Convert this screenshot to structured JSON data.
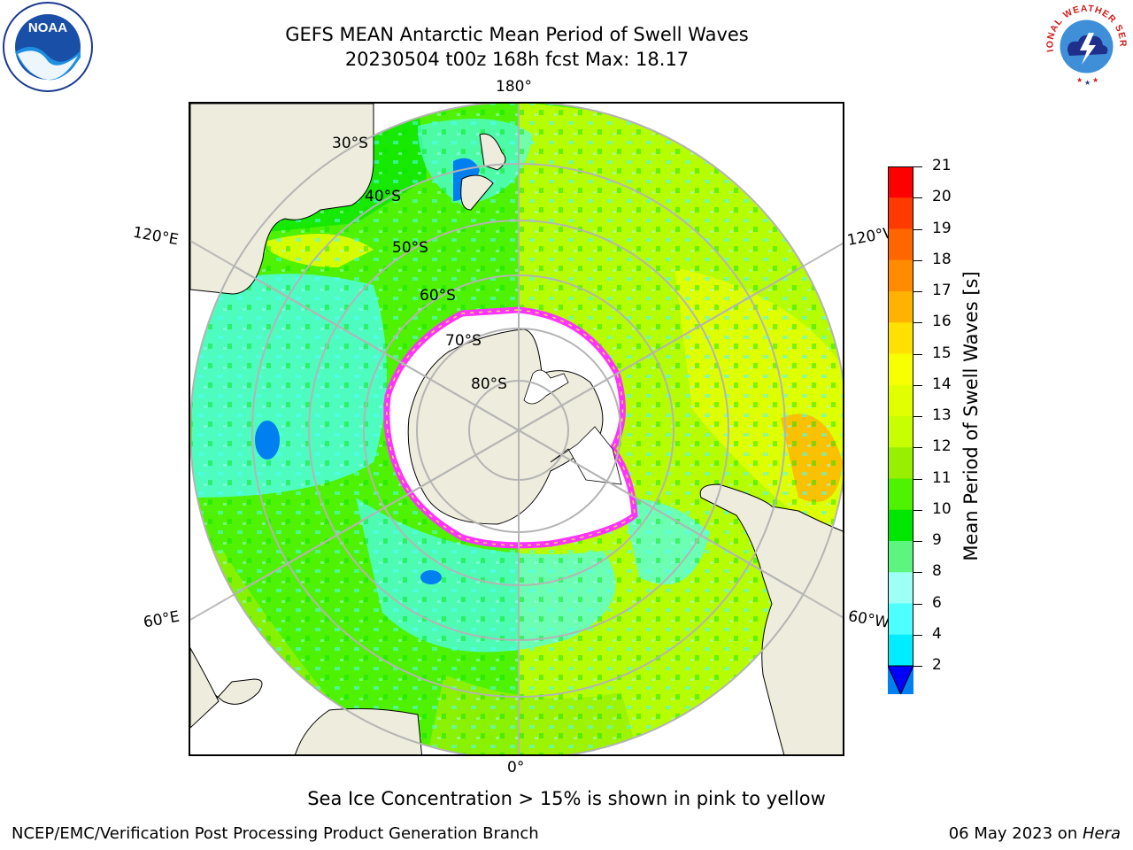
{
  "header": {
    "title_line1": "GEFS MEAN Antarctic Mean Period of Swell Waves",
    "title_line2": "20230504 t00z 168h fcst   Max: 18.17"
  },
  "logos": {
    "left": "NOAA",
    "right": "NATIONAL WEATHER SERVICE"
  },
  "map": {
    "projection": "south-polar-stereographic",
    "longitude_labels": {
      "top": "180°",
      "bottom": "0°",
      "upper_left": "120°E",
      "upper_right": "120°W",
      "lower_left": "60°E",
      "lower_right": "60°W"
    },
    "latitude_labels": [
      "30°S",
      "40°S",
      "50°S",
      "60°S",
      "70°S",
      "80°S"
    ],
    "land_color": "#eeecdc",
    "ice_free_color": "#ffffff",
    "sea_ice_colors": [
      "#ff33ff",
      "#ffe14a"
    ]
  },
  "colorbar": {
    "label": "Mean Period of Swell Waves [s]",
    "ticks": [
      "21",
      "20",
      "19",
      "18",
      "17",
      "16",
      "15",
      "14",
      "13",
      "12",
      "11",
      "10",
      "9",
      "8",
      "6",
      "4",
      "2"
    ],
    "colors_top_to_bottom": [
      "#ff0000",
      "#ff3a00",
      "#ff6600",
      "#ff8c00",
      "#ffb200",
      "#ffe100",
      "#f7ff00",
      "#e2ff00",
      "#c8ff00",
      "#98f000",
      "#4ff200",
      "#00e600",
      "#5df580",
      "#9dfff5",
      "#4dffff",
      "#00ecff",
      "#007ff0"
    ],
    "extend_color": "#0000ff"
  },
  "footnote": "Sea Ice Concentration > 15% is shown in pink to yellow",
  "credits": {
    "left": "NCEP/EMC/Verification Post Processing Product Generation Branch",
    "right_date": "06 May 2023 on ",
    "right_machine": "Hera"
  }
}
